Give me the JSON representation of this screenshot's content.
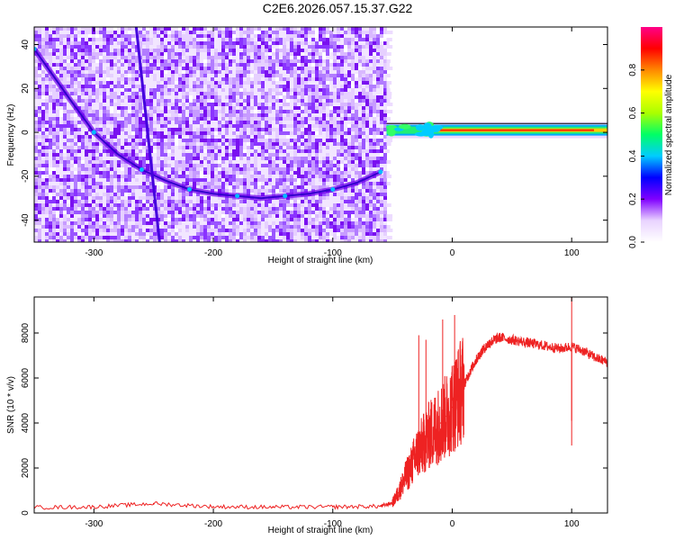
{
  "title": "C2E6.2026.057.15.37.G22",
  "chart_data": [
    {
      "type": "heatmap",
      "xlabel": "Height of straight line (km)",
      "ylabel": "Frequency (Hz)",
      "xlim": [
        -350,
        130
      ],
      "ylim": [
        -50,
        48
      ],
      "x_ticks": [
        -300,
        -200,
        -100,
        0,
        100
      ],
      "y_ticks": [
        -40,
        -20,
        0,
        20,
        40
      ],
      "colorbar": {
        "label": "Normalized spectral amplitude",
        "range": [
          0,
          1
        ],
        "ticks": [
          "0.0",
          "0.2",
          "0.4",
          "0.6",
          "0.8"
        ],
        "colors": [
          "#ffffff",
          "#e9d3ff",
          "#8000ff",
          "#0000ff",
          "#00ccff",
          "#00ff66",
          "#aaff00",
          "#ffff00",
          "#ff8800",
          "#ff0000",
          "#ff0088"
        ]
      },
      "features": {
        "noise_region_x": [
          -350,
          -55
        ],
        "doppler_curve": [
          [
            -350,
            38
          ],
          [
            -320,
            15
          ],
          [
            -300,
            0
          ],
          [
            -280,
            -10
          ],
          [
            -260,
            -17
          ],
          [
            -240,
            -22
          ],
          [
            -220,
            -26
          ],
          [
            -200,
            -28
          ],
          [
            -180,
            -29
          ],
          [
            -160,
            -30
          ],
          [
            -140,
            -29
          ],
          [
            -120,
            -28
          ],
          [
            -100,
            -26
          ],
          [
            -80,
            -23
          ],
          [
            -60,
            -18
          ]
        ],
        "steep_track": [
          [
            -265,
            50
          ],
          [
            -245,
            -50
          ]
        ],
        "carrier_line_x": [
          -55,
          130
        ],
        "carrier_line_freq": 1
      }
    },
    {
      "type": "line",
      "xlabel": "Height of straight line (km)",
      "ylabel": "SNR (10 * v/v)",
      "xlim": [
        -350,
        130
      ],
      "ylim": [
        0,
        9600
      ],
      "x_ticks": [
        -300,
        -200,
        -100,
        0,
        100
      ],
      "y_ticks": [
        0,
        2000,
        4000,
        6000,
        8000
      ],
      "color": "#ee2222",
      "series": [
        {
          "x": [
            -350,
            -300,
            -250,
            -200,
            -150,
            -100,
            -60,
            -50,
            -45,
            -40,
            -35,
            -30,
            -25,
            -20,
            -15,
            -10,
            -5,
            0,
            5,
            10,
            15,
            20,
            25,
            30,
            35,
            40,
            50,
            60,
            70,
            80,
            90,
            100,
            110,
            120,
            130
          ],
          "values": [
            250,
            270,
            420,
            280,
            260,
            270,
            300,
            450,
            900,
            1500,
            2000,
            2600,
            3000,
            3400,
            3700,
            4000,
            4300,
            4700,
            5200,
            5700,
            6300,
            6800,
            7200,
            7500,
            7700,
            7800,
            7700,
            7600,
            7500,
            7400,
            7300,
            7400,
            7200,
            6900,
            6700
          ]
        }
      ]
    }
  ]
}
